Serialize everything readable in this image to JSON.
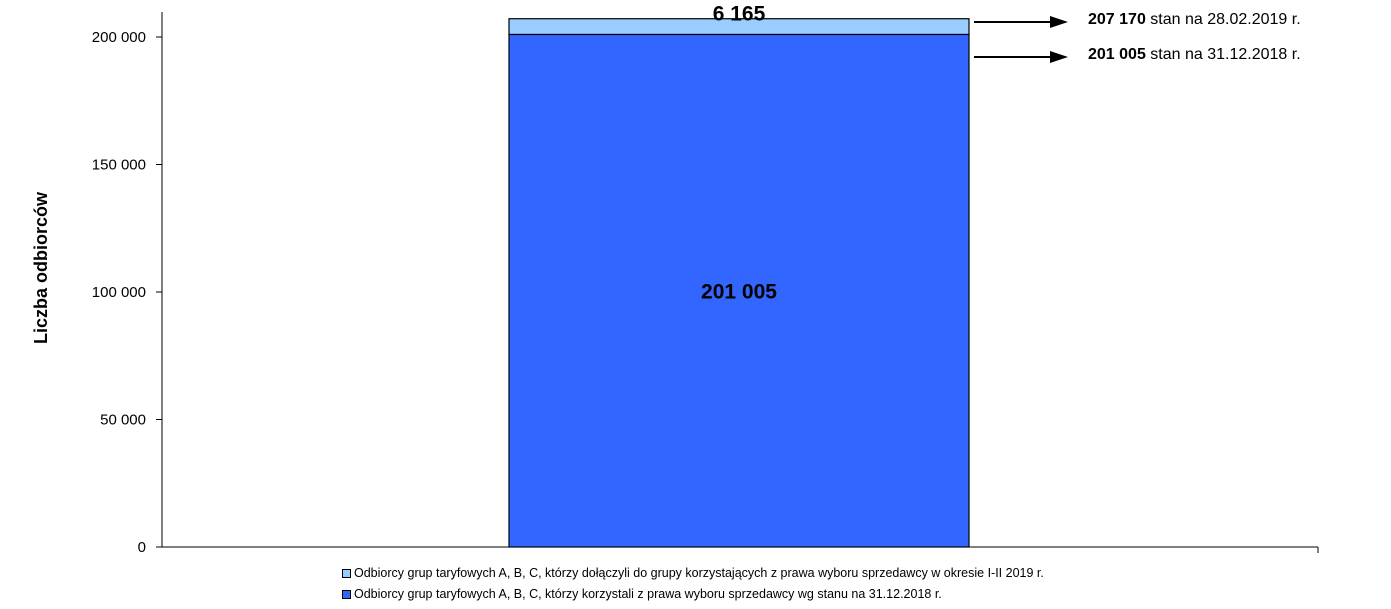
{
  "chart_data": {
    "type": "bar",
    "stacked": true,
    "categories": [
      ""
    ],
    "series": [
      {
        "name": "Odbiorcy grup taryfowych A, B, C, którzy korzystali z prawa wyboru sprzedawcy wg stanu na 31.12.2018 r.",
        "values": [
          201005
        ],
        "label": "201 005",
        "color": "#3366ff"
      },
      {
        "name": "Odbiorcy grup taryfowych A, B, C, którzy dołączyli do grupy korzystających z  prawa wyboru sprzedawcy w okresie I-II 2019 r.",
        "values": [
          6165
        ],
        "label": "6 165",
        "color": "#99ccff"
      }
    ],
    "ylabel": "Liczba odbiorców",
    "ylim": [
      0,
      200000
    ],
    "yticks": [
      {
        "value": 0,
        "label": "0"
      },
      {
        "value": 50000,
        "label": "50 000"
      },
      {
        "value": 100000,
        "label": "100 000"
      },
      {
        "value": 150000,
        "label": "150 000"
      },
      {
        "value": 200000,
        "label": "200 000"
      }
    ],
    "grid": false,
    "legend_position": "bottom",
    "annotations": [
      {
        "value": 207170,
        "bold": "207 170",
        "text": " stan na 28.02.2019 r."
      },
      {
        "value": 201005,
        "bold": "201 005",
        "text": " stan na 31.12.2018 r."
      }
    ]
  }
}
